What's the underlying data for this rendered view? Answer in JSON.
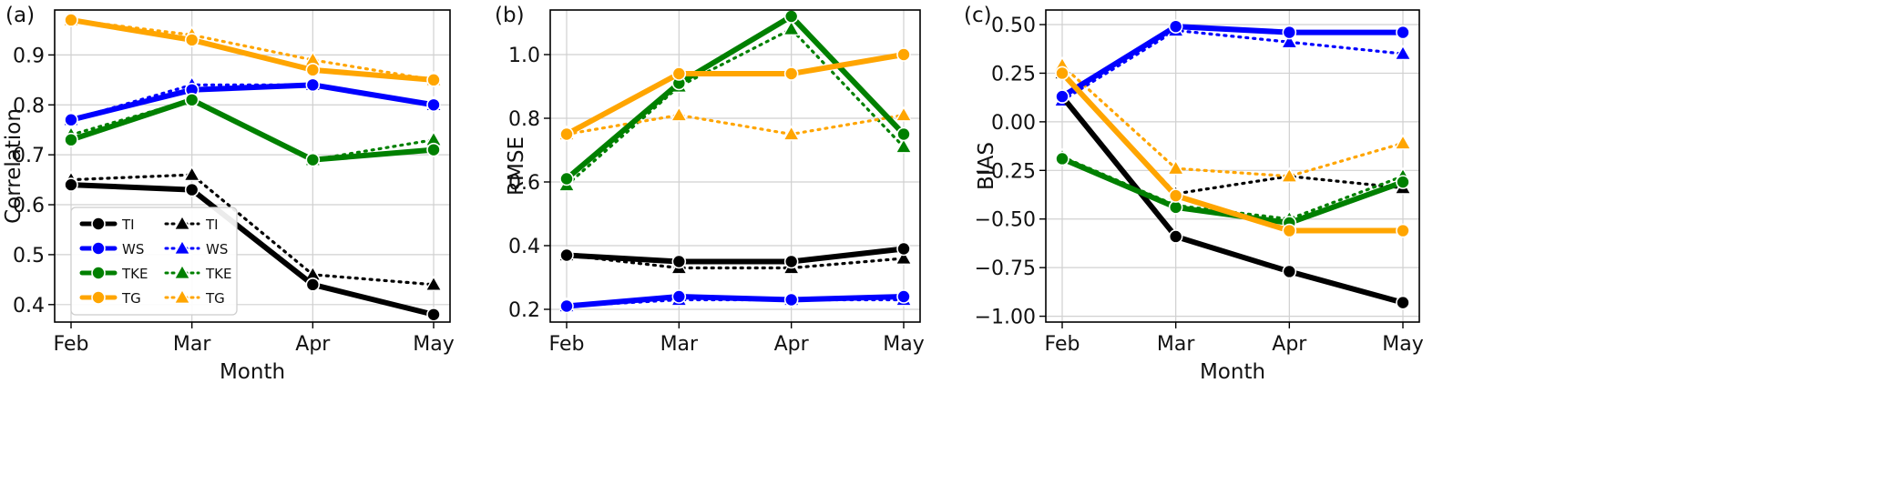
{
  "figure": {
    "background": "#ffffff"
  },
  "chart_data": [
    {
      "panel_label": "(a)",
      "type": "line",
      "categories": [
        "Feb",
        "Mar",
        "Apr",
        "May"
      ],
      "xlabel": "Month",
      "ylabel": "Correlation",
      "ylim": [
        0.365,
        0.99
      ],
      "yticks": [
        0.4,
        0.5,
        0.6,
        0.7,
        0.8,
        0.9
      ],
      "ytick_labels": [
        "0.4",
        "0.5",
        "0.6",
        "0.7",
        "0.8",
        "0.9"
      ],
      "grid": true,
      "legend": {
        "placement": "lower-left",
        "entries": [
          {
            "label": "TI",
            "color": "#000000",
            "style": "solid",
            "marker": "circle"
          },
          {
            "label": "WS",
            "color": "#0000ff",
            "style": "solid",
            "marker": "circle"
          },
          {
            "label": "TKE",
            "color": "#008000",
            "style": "solid",
            "marker": "circle"
          },
          {
            "label": "TG",
            "color": "#ffa500",
            "style": "solid",
            "marker": "circle"
          },
          {
            "label": "TI",
            "color": "#000000",
            "style": "dotted",
            "marker": "triangle"
          },
          {
            "label": "WS",
            "color": "#0000ff",
            "style": "dotted",
            "marker": "triangle"
          },
          {
            "label": "TKE",
            "color": "#008000",
            "style": "dotted",
            "marker": "triangle"
          },
          {
            "label": "TG",
            "color": "#ffa500",
            "style": "dotted",
            "marker": "triangle"
          }
        ]
      },
      "series": [
        {
          "key": "TI-solid",
          "color": "#000000",
          "style": "solid",
          "marker": "circle",
          "values": [
            0.64,
            0.63,
            0.44,
            0.38
          ]
        },
        {
          "key": "WS-solid",
          "color": "#0000ff",
          "style": "solid",
          "marker": "circle",
          "values": [
            0.77,
            0.83,
            0.84,
            0.8
          ]
        },
        {
          "key": "TKE-solid",
          "color": "#008000",
          "style": "solid",
          "marker": "circle",
          "values": [
            0.73,
            0.81,
            0.69,
            0.71
          ]
        },
        {
          "key": "TG-solid",
          "color": "#ffa500",
          "style": "solid",
          "marker": "circle",
          "values": [
            0.97,
            0.93,
            0.87,
            0.85
          ]
        },
        {
          "key": "TI-dotted",
          "color": "#000000",
          "style": "dotted",
          "marker": "triangle",
          "values": [
            0.65,
            0.66,
            0.46,
            0.44
          ]
        },
        {
          "key": "WS-dotted",
          "color": "#0000ff",
          "style": "dotted",
          "marker": "triangle",
          "values": [
            0.77,
            0.84,
            0.84,
            0.8
          ]
        },
        {
          "key": "TKE-dotted",
          "color": "#008000",
          "style": "dotted",
          "marker": "triangle",
          "values": [
            0.74,
            0.81,
            0.69,
            0.73
          ]
        },
        {
          "key": "TG-dotted",
          "color": "#ffa500",
          "style": "dotted",
          "marker": "triangle",
          "values": [
            0.97,
            0.94,
            0.89,
            0.85
          ]
        }
      ]
    },
    {
      "panel_label": "(b)",
      "type": "line",
      "categories": [
        "Feb",
        "Mar",
        "Apr",
        "May"
      ],
      "xlabel": "",
      "ylabel": "RMSE",
      "ylim": [
        0.16,
        1.14
      ],
      "yticks": [
        0.2,
        0.4,
        0.6,
        0.8,
        1.0
      ],
      "ytick_labels": [
        "0.2",
        "0.4",
        "0.6",
        "0.8",
        "1.0"
      ],
      "grid": true,
      "series": [
        {
          "key": "TI-solid",
          "color": "#000000",
          "style": "solid",
          "marker": "circle",
          "values": [
            0.37,
            0.35,
            0.35,
            0.39
          ]
        },
        {
          "key": "WS-solid",
          "color": "#0000ff",
          "style": "solid",
          "marker": "circle",
          "values": [
            0.21,
            0.24,
            0.23,
            0.24
          ]
        },
        {
          "key": "TKE-solid",
          "color": "#008000",
          "style": "solid",
          "marker": "circle",
          "values": [
            0.61,
            0.91,
            1.12,
            0.75
          ]
        },
        {
          "key": "TG-solid",
          "color": "#ffa500",
          "style": "solid",
          "marker": "circle",
          "values": [
            0.75,
            0.94,
            0.94,
            1.0
          ]
        },
        {
          "key": "TI-dotted",
          "color": "#000000",
          "style": "dotted",
          "marker": "triangle",
          "values": [
            0.37,
            0.33,
            0.33,
            0.36
          ]
        },
        {
          "key": "WS-dotted",
          "color": "#0000ff",
          "style": "dotted",
          "marker": "triangle",
          "values": [
            0.21,
            0.23,
            0.23,
            0.23
          ]
        },
        {
          "key": "TKE-dotted",
          "color": "#008000",
          "style": "dotted",
          "marker": "triangle",
          "values": [
            0.59,
            0.9,
            1.08,
            0.71
          ]
        },
        {
          "key": "TG-dotted",
          "color": "#ffa500",
          "style": "dotted",
          "marker": "triangle",
          "values": [
            0.75,
            0.81,
            0.75,
            0.81
          ]
        }
      ]
    },
    {
      "panel_label": "(c)",
      "type": "line",
      "categories": [
        "Feb",
        "Mar",
        "Apr",
        "May"
      ],
      "xlabel": "Month",
      "ylabel": "BIAS",
      "ylim": [
        -1.03,
        0.575
      ],
      "yticks": [
        -1.0,
        -0.75,
        -0.5,
        -0.25,
        0.0,
        0.25,
        0.5
      ],
      "ytick_labels": [
        "−1.00",
        "−0.75",
        "−0.50",
        "−0.25",
        "0.00",
        "0.25",
        "0.50"
      ],
      "grid": true,
      "series": [
        {
          "key": "TI-solid",
          "color": "#000000",
          "style": "solid",
          "marker": "circle",
          "values": [
            0.13,
            -0.59,
            -0.77,
            -0.93
          ]
        },
        {
          "key": "WS-solid",
          "color": "#0000ff",
          "style": "solid",
          "marker": "circle",
          "values": [
            0.13,
            0.49,
            0.46,
            0.46
          ]
        },
        {
          "key": "TKE-solid",
          "color": "#008000",
          "style": "solid",
          "marker": "circle",
          "values": [
            -0.19,
            -0.44,
            -0.52,
            -0.31
          ]
        },
        {
          "key": "TG-solid",
          "color": "#ffa500",
          "style": "solid",
          "marker": "circle",
          "values": [
            0.25,
            -0.38,
            -0.56,
            -0.56
          ]
        },
        {
          "key": "TI-dotted",
          "color": "#000000",
          "style": "dotted",
          "marker": "triangle",
          "values": [
            0.25,
            -0.37,
            -0.28,
            -0.34
          ]
        },
        {
          "key": "WS-dotted",
          "color": "#0000ff",
          "style": "dotted",
          "marker": "triangle",
          "values": [
            0.11,
            0.47,
            0.41,
            0.35
          ]
        },
        {
          "key": "TKE-dotted",
          "color": "#008000",
          "style": "dotted",
          "marker": "triangle",
          "values": [
            -0.18,
            -0.43,
            -0.5,
            -0.28
          ]
        },
        {
          "key": "TG-dotted",
          "color": "#ffa500",
          "style": "dotted",
          "marker": "triangle",
          "values": [
            0.29,
            -0.24,
            -0.28,
            -0.11
          ]
        }
      ]
    }
  ]
}
